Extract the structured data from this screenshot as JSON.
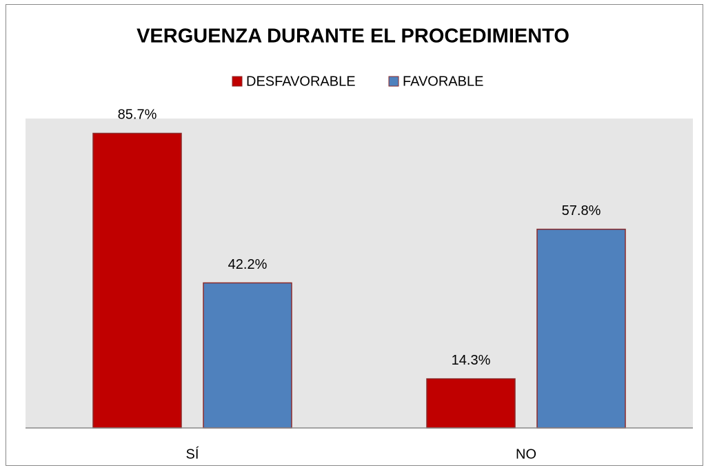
{
  "chart_data": {
    "type": "bar",
    "title": "VERGUENZA DURANTE EL PROCEDIMIENTO",
    "categories": [
      "SÍ",
      "NO"
    ],
    "series": [
      {
        "name": "DESFAVORABLE",
        "color": "#c00000",
        "values": [
          85.7,
          14.3
        ],
        "value_labels": [
          "85.7%",
          "14.3%"
        ]
      },
      {
        "name": "FAVORABLE",
        "color": "#4f81bd",
        "values": [
          42.2,
          57.8
        ],
        "value_labels": [
          "42.2%",
          "57.8%"
        ]
      }
    ],
    "ylim": [
      0,
      90
    ],
    "legend": "top"
  }
}
